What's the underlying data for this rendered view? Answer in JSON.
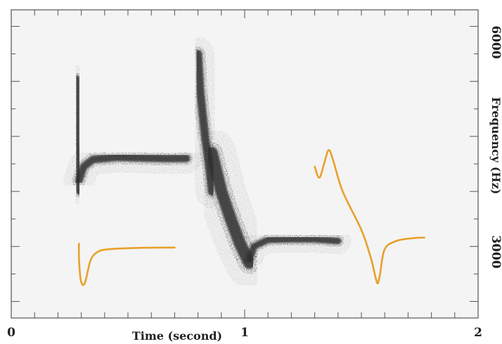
{
  "chart_data": {
    "type": "spectrogram",
    "xlabel": "Time (second)",
    "ylabel": "Frequency (Hz)",
    "xlim": [
      0,
      2
    ],
    "ylim": [
      1700,
      7300
    ],
    "x_ticks": [
      {
        "value": 0,
        "label": "0"
      },
      {
        "value": 1,
        "label": "1"
      },
      {
        "value": 2,
        "label": "2"
      }
    ],
    "y_ticks": [
      {
        "value": 3000,
        "label": "3000"
      },
      {
        "value": 6000,
        "label": "6000"
      }
    ],
    "colors": {
      "background": "#f4f4f4",
      "frame": "#555555",
      "spectrogram": "#2e2e2e",
      "overlay": "#e8a02a"
    },
    "spectrogram_components": [
      {
        "name": "syllable-1-vertical-onset",
        "points": [
          [
            0.28,
            6050
          ],
          [
            0.28,
            5400
          ],
          [
            0.28,
            4900
          ],
          [
            0.29,
            4400
          ],
          [
            0.29,
            4000
          ]
        ],
        "width_hz": 120
      },
      {
        "name": "syllable-1-tone",
        "points": [
          [
            0.29,
            4200
          ],
          [
            0.31,
            4450
          ],
          [
            0.35,
            4580
          ],
          [
            0.45,
            4620
          ],
          [
            0.55,
            4610
          ],
          [
            0.65,
            4600
          ],
          [
            0.75,
            4600
          ]
        ],
        "width_hz": 140
      },
      {
        "name": "syllable-2-vertical-onset",
        "points": [
          [
            0.8,
            6500
          ],
          [
            0.81,
            5800
          ],
          [
            0.83,
            5000
          ],
          [
            0.85,
            4400
          ],
          [
            0.86,
            4000
          ]
        ],
        "width_hz": 150
      },
      {
        "name": "syllable-2-downsweep",
        "points": [
          [
            0.86,
            4700
          ],
          [
            0.9,
            4000
          ],
          [
            0.94,
            3500
          ],
          [
            0.98,
            3050
          ],
          [
            1.02,
            2700
          ]
        ],
        "width_hz": 220
      },
      {
        "name": "syllable-2-tail",
        "points": [
          [
            1.02,
            2750
          ],
          [
            1.04,
            3000
          ],
          [
            1.1,
            3120
          ],
          [
            1.2,
            3130
          ],
          [
            1.3,
            3130
          ],
          [
            1.4,
            3100
          ]
        ],
        "width_hz": 120
      }
    ],
    "series": [
      {
        "points": [
          [
            0.29,
            3050
          ],
          [
            0.29,
            2800
          ],
          [
            0.295,
            2480
          ],
          [
            0.3,
            2350
          ],
          [
            0.31,
            2300
          ],
          [
            0.32,
            2400
          ],
          [
            0.34,
            2750
          ],
          [
            0.37,
            2900
          ],
          [
            0.42,
            2950
          ],
          [
            0.55,
            2975
          ],
          [
            0.7,
            2980
          ]
        ]
      },
      {
        "points": [
          [
            1.3,
            4450
          ],
          [
            1.32,
            4250
          ],
          [
            1.34,
            4500
          ],
          [
            1.36,
            4750
          ],
          [
            1.38,
            4550
          ],
          [
            1.42,
            4000
          ],
          [
            1.5,
            3300
          ],
          [
            1.54,
            2800
          ],
          [
            1.56,
            2450
          ],
          [
            1.57,
            2330
          ],
          [
            1.58,
            2500
          ],
          [
            1.6,
            2950
          ],
          [
            1.65,
            3100
          ],
          [
            1.72,
            3150
          ],
          [
            1.77,
            3160
          ]
        ]
      }
    ]
  }
}
